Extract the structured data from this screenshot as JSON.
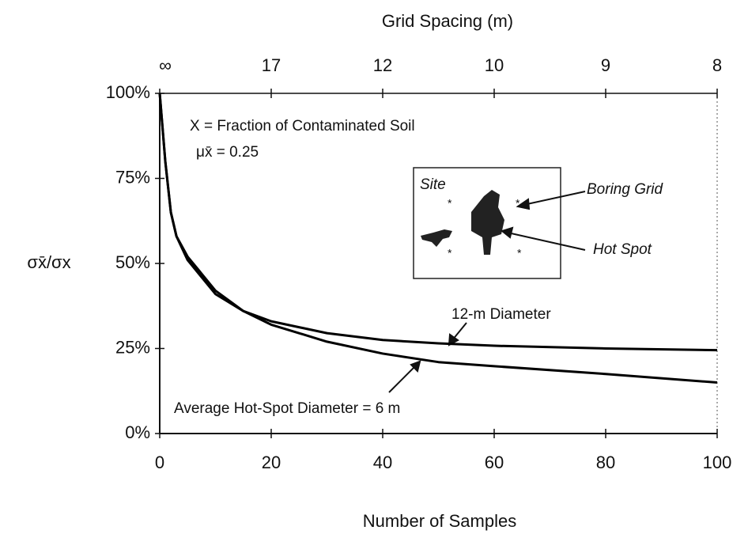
{
  "chart_data": {
    "type": "line",
    "title": "Grid Spacing (m)",
    "x_label": "Number of Samples",
    "y_label": "σx̄/σx",
    "annotations": [
      "X = Fraction of Contaminated Soil",
      "μx̄ = 0.25",
      "Site",
      "Boring Grid",
      "Hot Spot"
    ],
    "x": [
      0,
      1,
      2,
      3,
      5,
      10,
      15,
      20,
      30,
      40,
      50,
      60,
      80,
      100
    ],
    "series": [
      {
        "name": "12-m Diameter",
        "color": "#000000",
        "values": [
          100,
          80,
          65,
          58,
          52,
          42,
          36,
          33,
          29.5,
          27.5,
          26.5,
          25.8,
          25,
          24.5
        ]
      },
      {
        "name": "Average Hot-Spot Diameter = 6 m",
        "color": "#000000",
        "values": [
          100,
          80,
          65,
          58,
          51,
          41,
          36,
          32,
          27,
          23.5,
          21,
          19.8,
          17.5,
          15
        ]
      }
    ],
    "xlim": [
      0,
      100
    ],
    "xticks": [
      0,
      20,
      40,
      60,
      80,
      100
    ],
    "ylim": [
      0,
      100
    ],
    "yticks": [
      {
        "value": 0,
        "label": "0%"
      },
      {
        "value": 25,
        "label": "25%"
      },
      {
        "value": 50,
        "label": "50%"
      },
      {
        "value": 75,
        "label": "75%"
      },
      {
        "value": 100,
        "label": "100%"
      }
    ],
    "x2ticks": [
      {
        "value": 0,
        "label": "∞"
      },
      {
        "value": 20,
        "label": "17"
      },
      {
        "value": 40,
        "label": "12"
      },
      {
        "value": 60,
        "label": "10"
      },
      {
        "value": 80,
        "label": "9"
      },
      {
        "value": 100,
        "label": "8"
      }
    ],
    "grid": false
  }
}
